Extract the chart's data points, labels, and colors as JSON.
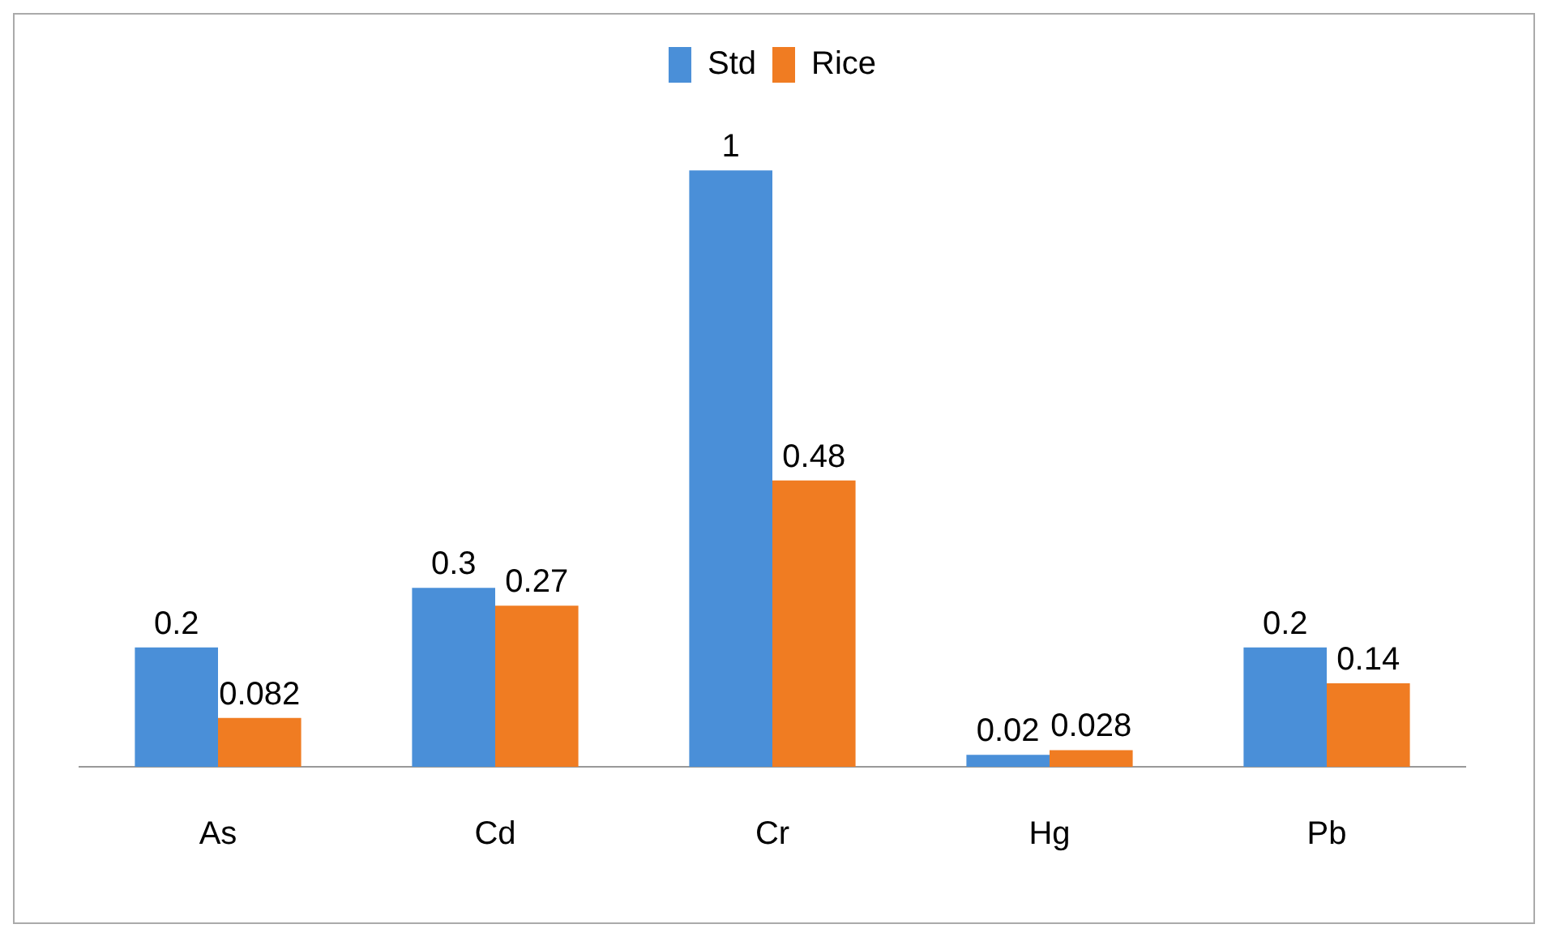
{
  "chart_data": {
    "type": "bar",
    "categories": [
      "As",
      "Cd",
      "Cr",
      "Hg",
      "Pb"
    ],
    "series": [
      {
        "name": "Std",
        "color": "#4a8fd8",
        "values": [
          0.2,
          0.3,
          1,
          0.02,
          0.2
        ]
      },
      {
        "name": "Rice",
        "color": "#f07c22",
        "values": [
          0.082,
          0.27,
          0.48,
          0.028,
          0.14
        ]
      }
    ],
    "data_labels": true,
    "legend": "top",
    "grid": false
  }
}
